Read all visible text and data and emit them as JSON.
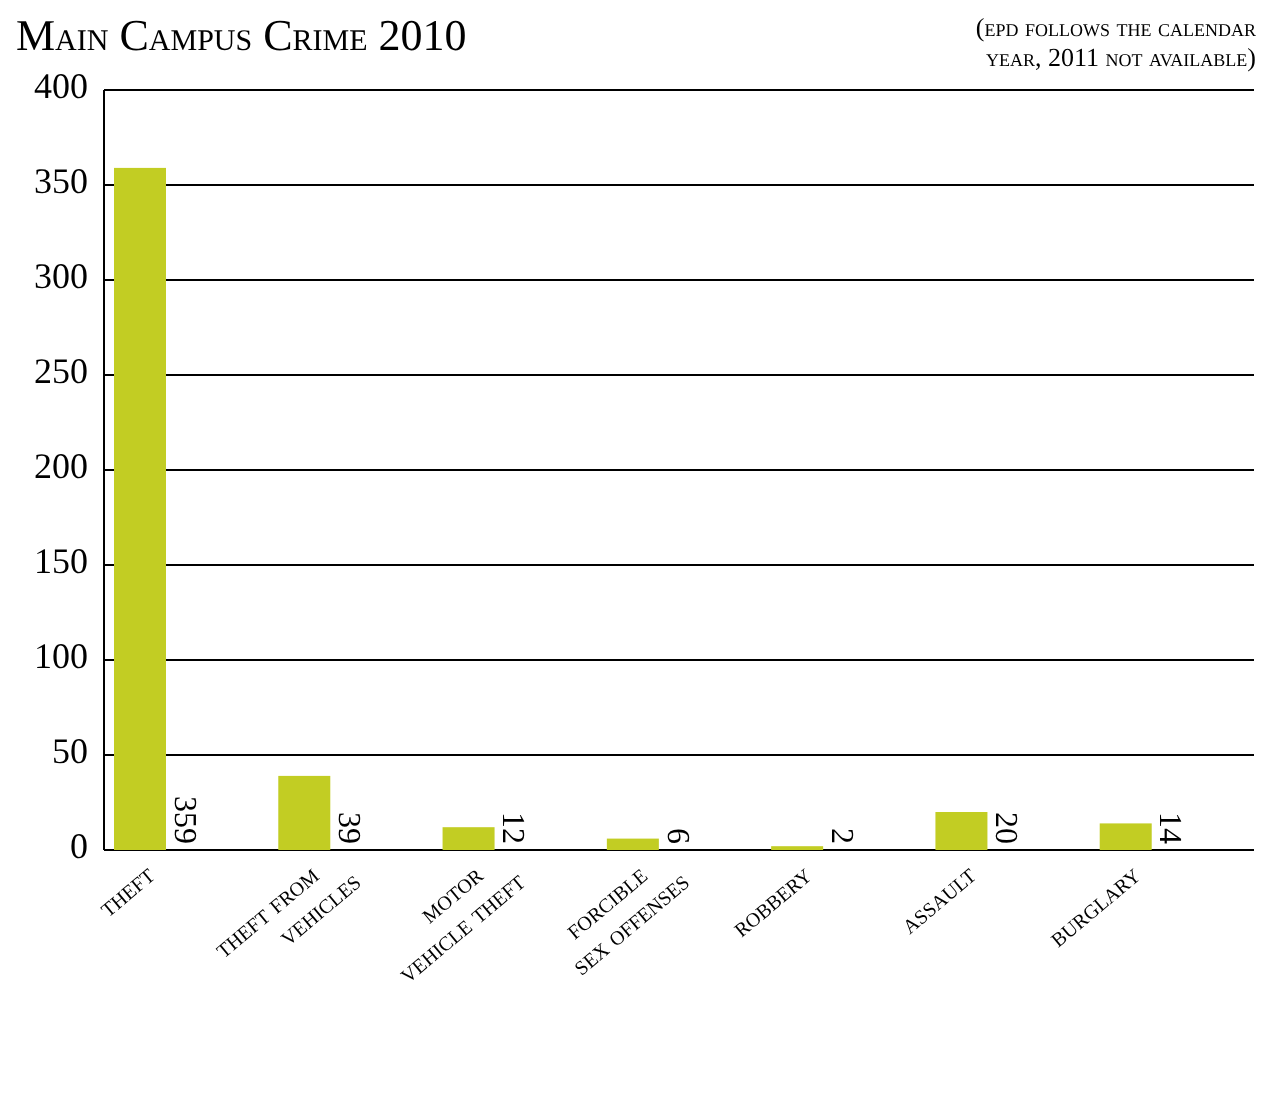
{
  "chart_data": {
    "type": "bar",
    "title": "Main Campus Crime 2010",
    "subtitle": "(epd follows the calendar year, 2011 not available)",
    "categories": [
      "theft",
      "theft from vehicles",
      "motor vehicle theft",
      "forcible sex offenses",
      "robbery",
      "assault",
      "burglary"
    ],
    "values": [
      359,
      39,
      12,
      6,
      2,
      20,
      14
    ],
    "color": "#c2cd23",
    "data_labels": true,
    "ylim": [
      0,
      400
    ],
    "yticks": [
      0,
      50,
      100,
      150,
      200,
      250,
      300,
      350,
      400
    ],
    "grid": "y"
  }
}
